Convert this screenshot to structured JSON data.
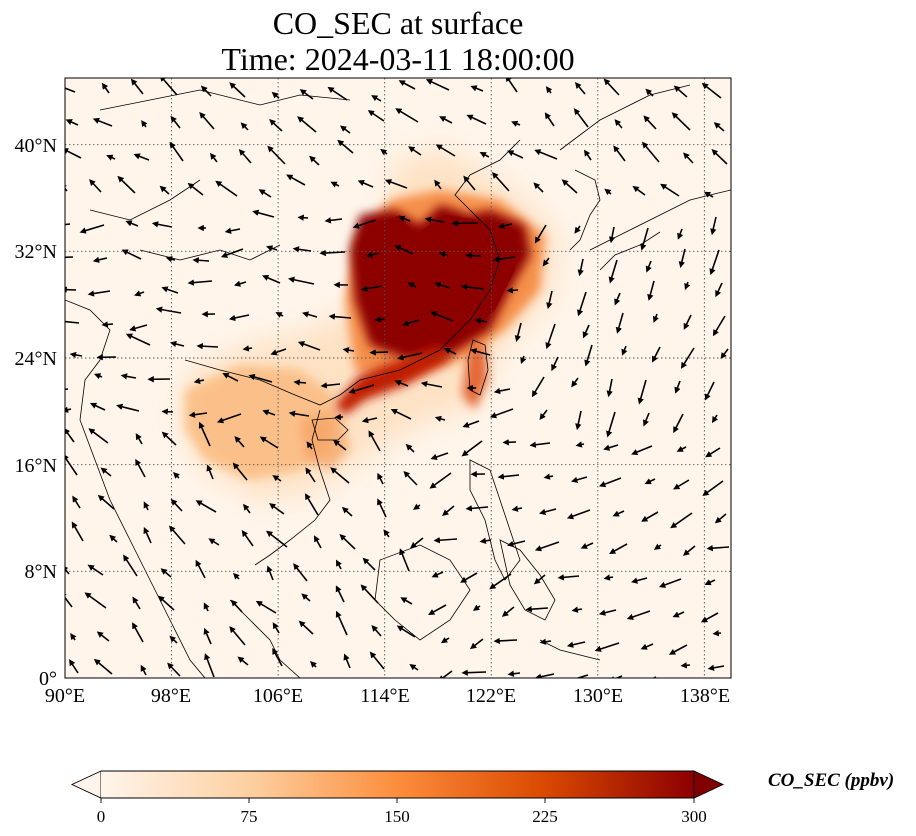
{
  "title": "CO_SEC at surface",
  "time": "Time: 2024-03-11 18:00:00",
  "lat_ticks": [
    "0°",
    "8°N",
    "16°N",
    "24°N",
    "32°N",
    "40°N"
  ],
  "lon_ticks": [
    "90°E",
    "98°E",
    "106°E",
    "114°E",
    "122°E",
    "130°E",
    "138°E"
  ],
  "map": {
    "lon_range": [
      90,
      140
    ],
    "lat_range": [
      0,
      45
    ],
    "grid_values_lon": [
      90,
      98,
      106,
      114,
      122,
      130,
      138
    ],
    "grid_values_lat": [
      0,
      8,
      16,
      24,
      32,
      40
    ],
    "grid_style": "dotted",
    "field": "CO_SEC",
    "overlay": "wind vectors"
  },
  "colorbar": {
    "label": "CO_SEC (ppbv)",
    "ticks": [
      "0",
      "75",
      "150",
      "225",
      "300"
    ],
    "range": [
      0,
      300
    ],
    "extend": "both",
    "colors": [
      "#fff5eb",
      "#fdd0a2",
      "#fd8d3c",
      "#d94801",
      "#8c0000"
    ]
  }
}
